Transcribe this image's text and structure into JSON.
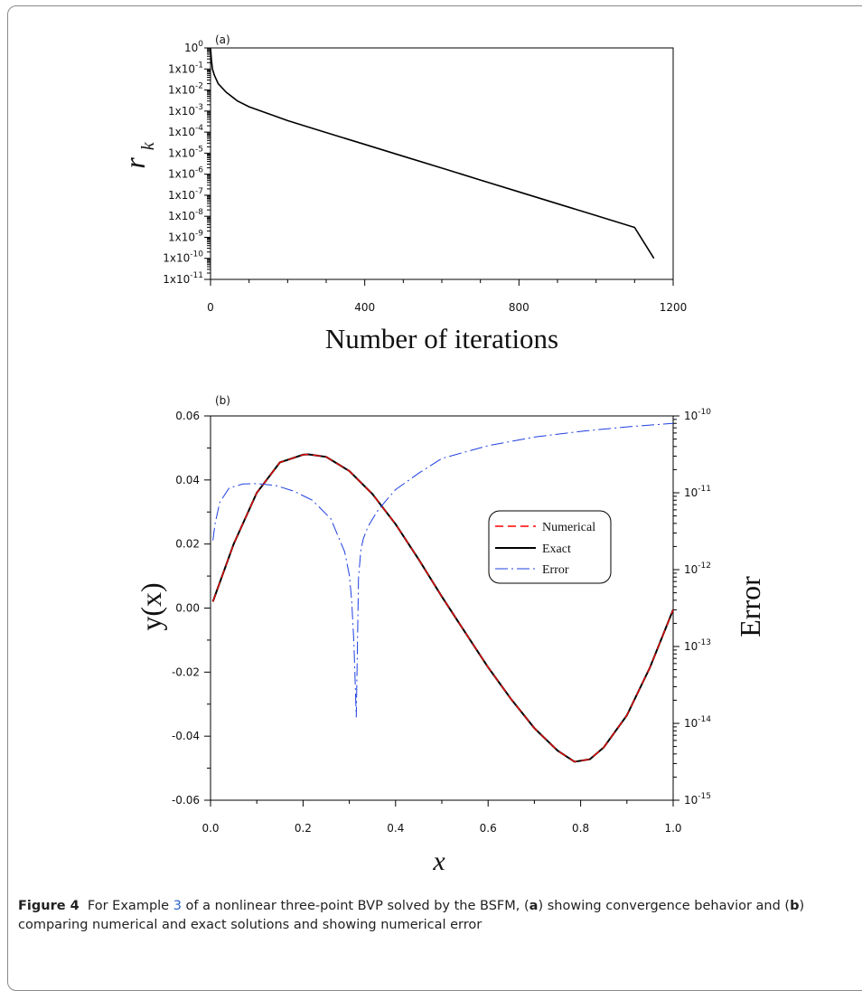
{
  "colors": {
    "numerical": "#ff0000",
    "exact": "#000000",
    "error": "#1f3fe0",
    "caption_link": "#2a63c8"
  },
  "chart_data": [
    {
      "type": "line",
      "panel_label": "(a)",
      "xlabel": "Number of iterations",
      "ylabel": "r",
      "ylabel_sub": "k",
      "xlim": [
        0,
        1200
      ],
      "xticks": [
        0,
        400,
        800,
        1200
      ],
      "y_scale": "log",
      "ylim": [
        1e-11,
        1
      ],
      "ytick_base": "1x10",
      "ytick_top": "10",
      "ytick_exponents": [
        0,
        -1,
        -2,
        -3,
        -4,
        -5,
        -6,
        -7,
        -8,
        -9,
        -10,
        -11
      ],
      "series": [
        {
          "x": [
            0,
            2,
            5,
            10,
            20,
            40,
            70,
            100,
            150,
            200,
            300,
            400,
            500,
            600,
            700,
            800,
            900,
            1000,
            1100,
            1150
          ],
          "y": [
            1,
            0.3,
            0.1,
            0.05,
            0.02,
            0.008,
            0.003,
            0.0016,
            0.00075,
            0.00035,
            9.55e-05,
            2.6e-05,
            7.1e-06,
            1.94e-06,
            5.3e-07,
            1.45e-07,
            3.95e-08,
            1.08e-08,
            2.95e-09,
            1e-10
          ]
        }
      ],
      "grid": false
    },
    {
      "type": "line",
      "panel_label": "(b)",
      "xlabel": "x",
      "ylabel": "y(x)",
      "y2label": "Error",
      "xlim": [
        0,
        1.0
      ],
      "xticks": [
        "0.0",
        "0.2",
        "0.4",
        "0.6",
        "0.8",
        "1.0"
      ],
      "ylim": [
        -0.06,
        0.06
      ],
      "yticks": [
        "0.06",
        "0.04",
        "0.02",
        "0.00",
        "-0.02",
        "-0.04",
        "-0.06"
      ],
      "y2_scale": "log",
      "y2lim": [
        1e-15,
        1e-10
      ],
      "y2tick_base": "10",
      "y2tick_exponents": [
        -10,
        -11,
        -12,
        -13,
        -14,
        -15
      ],
      "legend_position": "center-right",
      "series": [
        {
          "name": "Numerical",
          "style": "dashed",
          "x": [
            0.005,
            0.05,
            0.1,
            0.15,
            0.2,
            0.212,
            0.25,
            0.3,
            0.35,
            0.4,
            0.45,
            0.5,
            0.55,
            0.6,
            0.65,
            0.7,
            0.75,
            0.787,
            0.82,
            0.85,
            0.9,
            0.95,
            1.0
          ],
          "y": [
            0.002,
            0.02,
            0.036,
            0.0455,
            0.0479,
            0.048,
            0.0472,
            0.0428,
            0.0356,
            0.0262,
            0.0152,
            0.0036,
            -0.0075,
            -0.0185,
            -0.0285,
            -0.0375,
            -0.0445,
            -0.048,
            -0.0472,
            -0.0435,
            -0.0335,
            -0.0185,
            -0.0005
          ]
        },
        {
          "name": "Exact",
          "style": "solid",
          "x": [
            0.005,
            0.05,
            0.1,
            0.15,
            0.2,
            0.212,
            0.25,
            0.3,
            0.35,
            0.4,
            0.45,
            0.5,
            0.55,
            0.6,
            0.65,
            0.7,
            0.75,
            0.787,
            0.82,
            0.85,
            0.9,
            0.95,
            1.0
          ],
          "y": [
            0.002,
            0.02,
            0.036,
            0.0455,
            0.0479,
            0.048,
            0.0472,
            0.0428,
            0.0356,
            0.0262,
            0.0152,
            0.0036,
            -0.0075,
            -0.0185,
            -0.0285,
            -0.0375,
            -0.0445,
            -0.048,
            -0.0472,
            -0.0435,
            -0.0335,
            -0.0185,
            -0.0005
          ]
        },
        {
          "name": "Error",
          "style": "dash-dot",
          "axis": "right",
          "x": [
            0.005,
            0.01,
            0.02,
            0.04,
            0.07,
            0.1,
            0.14,
            0.18,
            0.22,
            0.26,
            0.29,
            0.3,
            0.305,
            0.31,
            0.315,
            0.32,
            0.325,
            0.33,
            0.34,
            0.36,
            0.38,
            0.4,
            0.45,
            0.5,
            0.6,
            0.7,
            0.8,
            0.9,
            1.0
          ],
          "y": [
            2.4e-12,
            4e-12,
            7.5e-12,
            1.15e-11,
            1.3e-11,
            1.32e-11,
            1.25e-11,
            1.05e-11,
            8e-12,
            4.6e-12,
            1.7e-12,
            8.5e-13,
            4e-13,
            1.1e-13,
            1.2e-14,
            8e-13,
            1.8e-12,
            2.5e-12,
            3.6e-12,
            5.7e-12,
            8e-12,
            1.1e-11,
            1.8e-11,
            2.8e-11,
            4.1e-11,
            5.3e-11,
            6.3e-11,
            7.2e-11,
            8e-11
          ]
        }
      ],
      "grid": false
    }
  ],
  "caption": {
    "label": "Figure 4",
    "text_before": "For Example ",
    "ref": "3",
    "text_mid1": " of a nonlinear three-point BVP solved by the BSFM, (",
    "a": "a",
    "text_mid2": ") showing convergence behavior and (",
    "b": "b",
    "text_after": ") comparing numerical and exact solutions and showing numerical error"
  }
}
